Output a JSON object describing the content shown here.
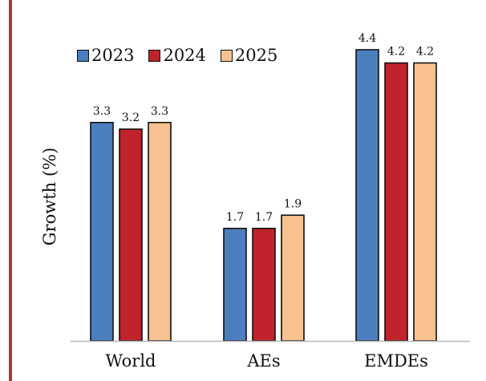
{
  "chart_data": {
    "type": "bar",
    "title": "",
    "xlabel": "",
    "ylabel": "Growth (%)",
    "ylim": [
      0,
      5.0
    ],
    "grid": false,
    "legend_position": "top-left",
    "categories": [
      "World",
      "AEs",
      "EMDEs"
    ],
    "series": [
      {
        "name": "2023",
        "color": "#4a7ebf",
        "values": [
          3.3,
          1.7,
          4.4
        ],
        "labels": [
          "3.3",
          "1.7",
          "4.4"
        ]
      },
      {
        "name": "2024",
        "color": "#c0232c",
        "values": [
          3.2,
          1.7,
          4.2
        ],
        "labels": [
          "3.2",
          "1.7",
          "4.2"
        ]
      },
      {
        "name": "2025",
        "color": "#f7c28f",
        "values": [
          3.3,
          1.9,
          4.2
        ],
        "labels": [
          "3.3",
          "1.9",
          "4.2"
        ]
      }
    ]
  },
  "colors": {
    "accent_rule": "#a23b3b",
    "bar_outline": "#111111",
    "axis": "#b5b5b5"
  }
}
